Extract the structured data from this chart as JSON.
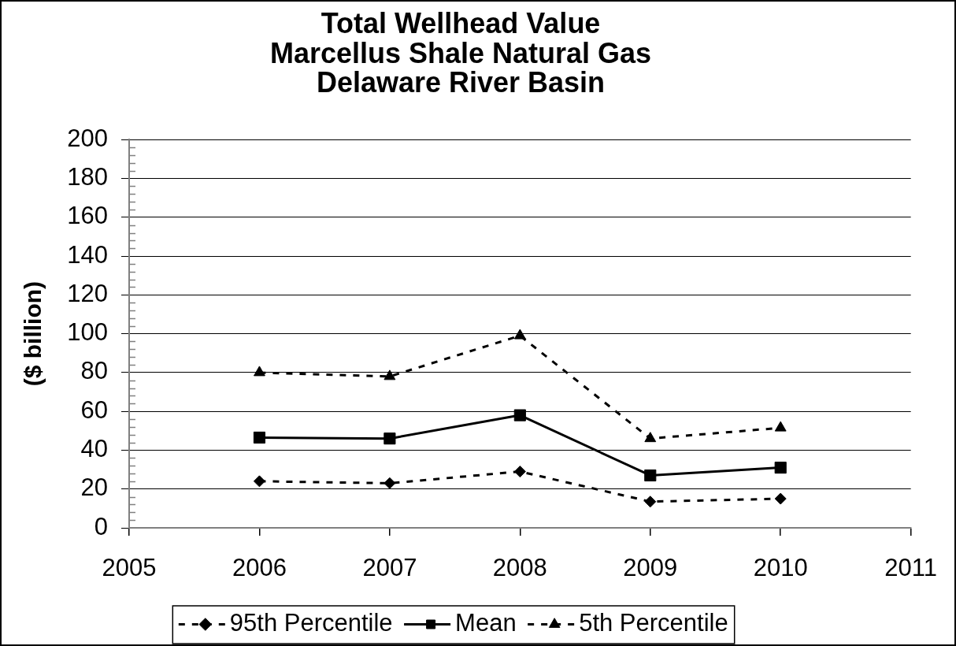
{
  "chart_data": {
    "type": "line",
    "title": "Total Wellhead Value\nMarcellus Shale Natural Gas\nDelaware River Basin",
    "ylabel": "($ billion)",
    "x": [
      2006,
      2007,
      2008,
      2009,
      2010
    ],
    "xlim": [
      2005,
      2011
    ],
    "xticks": [
      2005,
      2006,
      2007,
      2008,
      2009,
      2010,
      2011
    ],
    "ylim": [
      0,
      200
    ],
    "yticks": [
      0,
      {
        "value": 4,
        "label": null
      },
      {
        "value": 8,
        "label": null
      },
      {
        "value": 12,
        "label": null
      },
      {
        "value": 16,
        "label": null
      },
      20,
      {
        "value": 24,
        "label": null
      },
      {
        "value": 28,
        "label": null
      },
      {
        "value": 32,
        "label": null
      },
      {
        "value": 36,
        "label": null
      },
      40,
      {
        "value": 44,
        "label": null
      },
      {
        "value": 48,
        "label": null
      },
      {
        "value": 52,
        "label": null
      },
      {
        "value": 56,
        "label": null
      },
      60,
      {
        "value": 64,
        "label": null
      },
      {
        "value": 68,
        "label": null
      },
      {
        "value": 72,
        "label": null
      },
      {
        "value": 76,
        "label": null
      },
      80,
      {
        "value": 84,
        "label": null
      },
      {
        "value": 88,
        "label": null
      },
      {
        "value": 92,
        "label": null
      },
      {
        "value": 96,
        "label": null
      },
      100,
      {
        "value": 104,
        "label": null
      },
      {
        "value": 108,
        "label": null
      },
      {
        "value": 112,
        "label": null
      },
      {
        "value": 116,
        "label": null
      },
      120,
      {
        "value": 124,
        "label": null
      },
      {
        "value": 128,
        "label": null
      },
      {
        "value": 132,
        "label": null
      },
      {
        "value": 136,
        "label": null
      },
      140,
      {
        "value": 144,
        "label": null
      },
      {
        "value": 148,
        "label": null
      },
      {
        "value": 152,
        "label": null
      },
      {
        "value": 156,
        "label": null
      },
      160,
      {
        "value": 164,
        "label": null
      },
      {
        "value": 168,
        "label": null
      },
      {
        "value": 172,
        "label": null
      },
      {
        "value": 176,
        "label": null
      },
      180,
      {
        "value": 184,
        "label": null
      },
      {
        "value": 188,
        "label": null
      },
      {
        "value": 192,
        "label": null
      },
      {
        "value": 196,
        "label": null
      },
      200
    ],
    "series": [
      {
        "name": "95th Percentile",
        "color": "#000000",
        "marker": "diamond",
        "line_style": "dashed",
        "values": [
          24,
          23,
          29,
          13.5,
          15
        ]
      },
      {
        "name": "Mean",
        "color": "#000000",
        "marker": "square",
        "line_style": "solid",
        "values": [
          46.5,
          46,
          58,
          27,
          31
        ]
      },
      {
        "name": "5th Percentile",
        "color": "#000000",
        "marker": "triangle",
        "line_style": "dashed",
        "values": [
          80,
          78,
          99,
          46,
          51.5
        ]
      }
    ],
    "grid": "y",
    "legend": "bottom"
  }
}
